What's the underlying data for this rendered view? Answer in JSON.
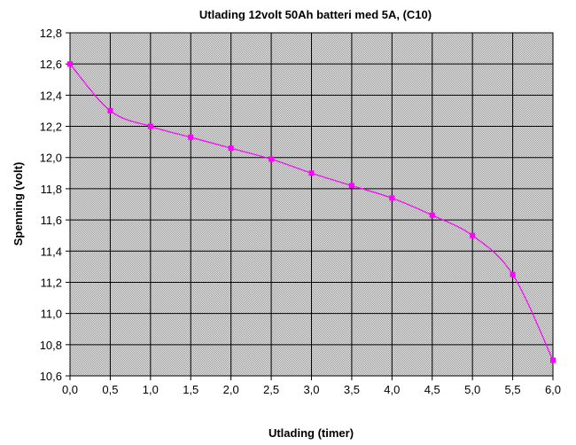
{
  "chart_data": {
    "type": "line",
    "title": "Utlading 12volt 50Ah batteri med 5A, (C10)",
    "xlabel": "Utlading (timer)",
    "ylabel": "Spenning (volt)",
    "xlim": [
      0,
      6
    ],
    "ylim": [
      10.6,
      12.8
    ],
    "x_ticks": [
      "0,0",
      "0,5",
      "1,0",
      "1,5",
      "2,0",
      "2,5",
      "3,0",
      "3,5",
      "4,0",
      "4,5",
      "5,0",
      "5,5",
      "6,0"
    ],
    "y_ticks": [
      "10,6",
      "10,8",
      "11,0",
      "11,2",
      "11,4",
      "11,6",
      "11,8",
      "12,0",
      "12,2",
      "12,4",
      "12,6",
      "12,8"
    ],
    "grid": true,
    "legend": false,
    "line_color": "#ff00ff",
    "plot_background": "#c8c8c8",
    "series": [
      {
        "x": [
          0.0,
          0.5,
          1.0,
          1.5,
          2.0,
          2.5,
          3.0,
          3.5,
          4.0,
          4.5,
          5.0,
          5.5,
          6.0
        ],
        "values": [
          12.6,
          12.3,
          12.2,
          12.13,
          12.06,
          11.99,
          11.9,
          11.82,
          11.74,
          11.63,
          11.5,
          11.25,
          10.7
        ]
      }
    ]
  }
}
